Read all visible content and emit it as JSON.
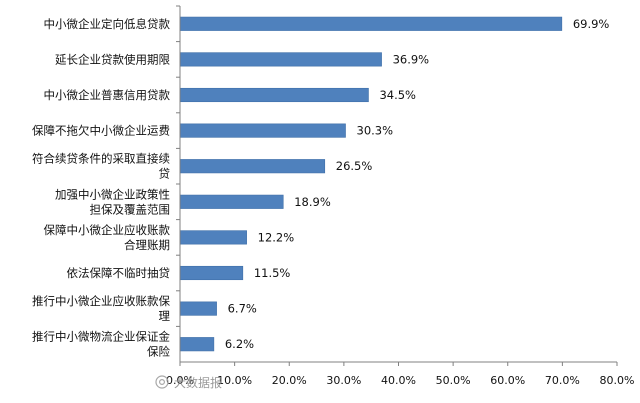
{
  "chart_data": {
    "type": "bar",
    "orientation": "horizontal",
    "categories": [
      [
        "中小微企业定向低息贷款"
      ],
      [
        "延长企业贷款使用期限"
      ],
      [
        "中小微企业普惠信用贷款"
      ],
      [
        "保障不拖欠中小微企业运费"
      ],
      [
        "符合续贷条件的采取直接续",
        "贷"
      ],
      [
        "加强中小微企业政策性",
        "担保及覆盖范围"
      ],
      [
        "保障中小微企业应收账款",
        "合理账期"
      ],
      [
        "依法保障不临时抽贷"
      ],
      [
        "推行中小微企业应收账款保",
        "理"
      ],
      [
        "推行中小微物流企业保证金",
        "保险"
      ]
    ],
    "values": [
      69.9,
      36.9,
      34.5,
      30.3,
      26.5,
      18.9,
      12.2,
      11.5,
      6.7,
      6.2
    ],
    "value_labels": [
      "69.9%",
      "36.9%",
      "34.5%",
      "30.3%",
      "26.5%",
      "18.9%",
      "12.2%",
      "11.5%",
      "6.7%",
      "6.2%"
    ],
    "xlim": [
      0,
      80
    ],
    "xticks": [
      0,
      10,
      20,
      30,
      40,
      50,
      60,
      70,
      80
    ],
    "xtick_labels": [
      "0.0%",
      "10.0%",
      "20.0%",
      "30.0%",
      "40.0%",
      "50.0%",
      "60.0%",
      "70.0%",
      "80.0%"
    ],
    "grid": false,
    "legend": "none",
    "colors": {
      "bar": "#4f81bd",
      "bar_edge": "#3f6fa8",
      "axis": "#808080"
    }
  },
  "watermark": {
    "text": "大数据报",
    "icon": "camera-icon"
  }
}
